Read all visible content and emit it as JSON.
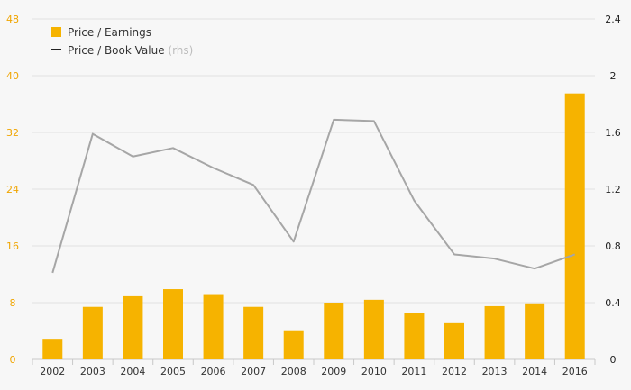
{
  "chart_data": {
    "type": "bar",
    "categories": [
      "2002",
      "2003",
      "2004",
      "2005",
      "2006",
      "2007",
      "2008",
      "2009",
      "2010",
      "2011",
      "2012",
      "2013",
      "2014",
      "2016"
    ],
    "series": [
      {
        "name": "Price / Earnings",
        "type": "bar",
        "axis": "left",
        "color": "#f6b300",
        "values": [
          2.9,
          7.4,
          8.9,
          9.9,
          9.2,
          7.4,
          4.1,
          8.0,
          8.4,
          6.5,
          5.1,
          7.5,
          7.9,
          37.5
        ]
      },
      {
        "name": "Price / Book Value",
        "type": "line",
        "axis": "right",
        "color": "#a6a6a6",
        "values": [
          0.61,
          1.59,
          1.43,
          1.49,
          1.35,
          1.23,
          0.83,
          1.69,
          1.68,
          1.12,
          0.74,
          0.71,
          0.64,
          0.74
        ]
      }
    ],
    "ylim_left": [
      0,
      48
    ],
    "yticks_left": [
      "0",
      "8",
      "16",
      "24",
      "32",
      "40",
      "48"
    ],
    "ylim_right": [
      0,
      2.4
    ],
    "yticks_right": [
      "0",
      "0.4",
      "0.8",
      "1.2",
      "1.6",
      "2",
      "2.4"
    ],
    "legend": {
      "placement": "top-left",
      "entries": [
        {
          "label": "Price / Earnings",
          "swatch": "square",
          "color": "#f6b300"
        },
        {
          "label": "Price / Book Value",
          "suffix": "(rhs)",
          "swatch": "line",
          "color": "#222222"
        }
      ]
    },
    "grid": true,
    "colors": {
      "left_tick": "#f0a500",
      "grid": "#e2e2e2",
      "baseline": "#c8c8c8"
    }
  }
}
